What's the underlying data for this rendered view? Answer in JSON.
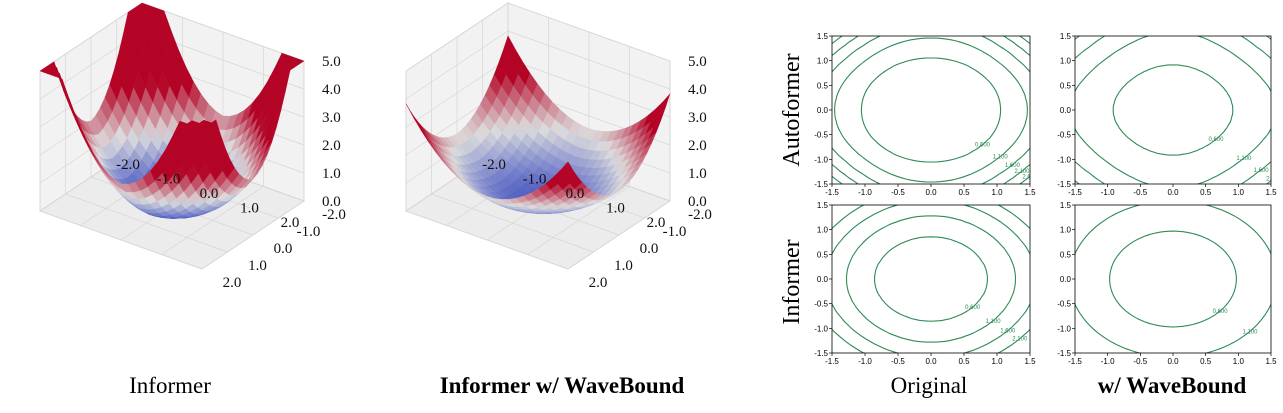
{
  "captions": {
    "informer": "Informer",
    "informer_wavebound": "Informer w/ WaveBound",
    "original": "Original",
    "w_wavebound": "w/ WaveBound"
  },
  "row_labels": {
    "autoformer": "Autoformer",
    "informer": "Informer"
  },
  "colors": {
    "surface_low": "#3b4cc0",
    "surface_mid": "#dddddd",
    "surface_high": "#b40426",
    "contour_line": "#2e8b57",
    "axis": "#333333"
  },
  "chart_data": [
    {
      "type": "surface",
      "panel": "informer-surface",
      "x_ticks": [
        "-2.0",
        "-1.0",
        "0.0",
        "1.0",
        "2.0"
      ],
      "y_ticks": [
        "-2.0",
        "-1.0",
        "0.0",
        "1.0",
        "2.0"
      ],
      "z_ticks": [
        "0.0",
        "1.0",
        "2.0",
        "3.0",
        "4.0",
        "5.0"
      ],
      "xlim": [
        -2,
        2
      ],
      "ylim": [
        -2,
        2
      ],
      "zlim": [
        0,
        5
      ],
      "loss_shape": {
        "a": 0.55,
        "b": 0.18,
        "c": 0.12,
        "min": -0.2
      },
      "colormap": "coolwarm"
    },
    {
      "type": "surface",
      "panel": "informer-wavebound-surface",
      "x_ticks": [
        "-2.0",
        "-1.0",
        "0.0",
        "1.0",
        "2.0"
      ],
      "y_ticks": [
        "-2.0",
        "-1.0",
        "0.0",
        "1.0",
        "2.0"
      ],
      "z_ticks": [
        "0.0",
        "1.0",
        "2.0",
        "3.0",
        "4.0",
        "5.0"
      ],
      "xlim": [
        -2,
        2
      ],
      "ylim": [
        -2,
        2
      ],
      "zlim": [
        0,
        5
      ],
      "loss_shape": {
        "a": 0.35,
        "b": 0.05,
        "c": 0.02,
        "min": 0.15
      },
      "colormap": "coolwarm"
    },
    {
      "type": "contour",
      "panel": "autoformer-original",
      "xlim": [
        -1.5,
        1.5
      ],
      "ylim": [
        -1.5,
        1.5
      ],
      "ticks": [
        "-1.5",
        "-1.0",
        "-0.5",
        "0.0",
        "0.5",
        "1.0",
        "1.5"
      ],
      "levels": [
        0.6,
        1.1,
        1.6,
        2.1,
        2.6,
        3.1
      ],
      "level_labels": [
        "0.600",
        "1.100",
        "1.600",
        "2.100",
        "2.600",
        "3.100"
      ],
      "shape": {
        "a": 0.4,
        "b": 0.16,
        "p": 2.3,
        "min": 0.15
      }
    },
    {
      "type": "contour",
      "panel": "autoformer-wavebound",
      "xlim": [
        -1.5,
        1.5
      ],
      "ylim": [
        -1.5,
        1.5
      ],
      "ticks": [
        "-1.5",
        "-1.0",
        "-0.5",
        "0.0",
        "0.5",
        "1.0",
        "1.5"
      ],
      "levels": [
        0.6,
        1.1,
        1.6,
        2.1,
        2.6,
        3.1
      ],
      "level_labels": [
        "0.600",
        "1.100",
        "1.600",
        "2.100",
        "2.600",
        "3.100"
      ],
      "shape": {
        "a": 0.3,
        "b": 0.1,
        "p": 2.0,
        "min": 0.35
      }
    },
    {
      "type": "contour",
      "panel": "informer-original",
      "xlim": [
        -1.5,
        1.5
      ],
      "ylim": [
        -1.5,
        1.5
      ],
      "ticks": [
        "-1.5",
        "-1.0",
        "-0.5",
        "0.0",
        "0.5",
        "1.0",
        "1.5"
      ],
      "levels": [
        0.6,
        1.1,
        1.6,
        2.1
      ],
      "level_labels": [
        "0.600",
        "1.100",
        "1.600",
        "2.100"
      ],
      "shape": {
        "a": 0.55,
        "b": 0.04,
        "p": 2.0,
        "min": 0.2
      }
    },
    {
      "type": "contour",
      "panel": "informer-wavebound",
      "xlim": [
        -1.5,
        1.5
      ],
      "ylim": [
        -1.5,
        1.5
      ],
      "ticks": [
        "-1.5",
        "-1.0",
        "-0.5",
        "0.0",
        "0.5",
        "1.0",
        "1.5"
      ],
      "levels": [
        0.6,
        1.1
      ],
      "level_labels": [
        "0.600",
        "1.100"
      ],
      "shape": {
        "a": 0.32,
        "b": 0.0,
        "p": 2.0,
        "min": 0.3
      }
    }
  ]
}
